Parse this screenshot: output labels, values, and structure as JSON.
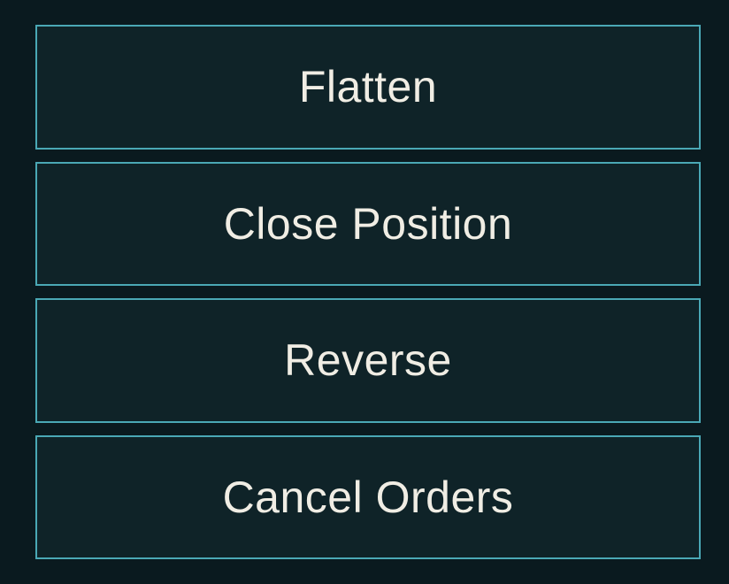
{
  "panel": {
    "background_color": "#0a1a1f",
    "button_bg": "#0f2328",
    "button_border": "#4aa8b5",
    "button_text_color": "#f0ede4",
    "button_fontsize": 50,
    "buttons": [
      {
        "id": "flatten",
        "label": "Flatten"
      },
      {
        "id": "close-position",
        "label": "Close Position"
      },
      {
        "id": "reverse",
        "label": "Reverse"
      },
      {
        "id": "cancel-orders",
        "label": "Cancel Orders"
      }
    ]
  }
}
